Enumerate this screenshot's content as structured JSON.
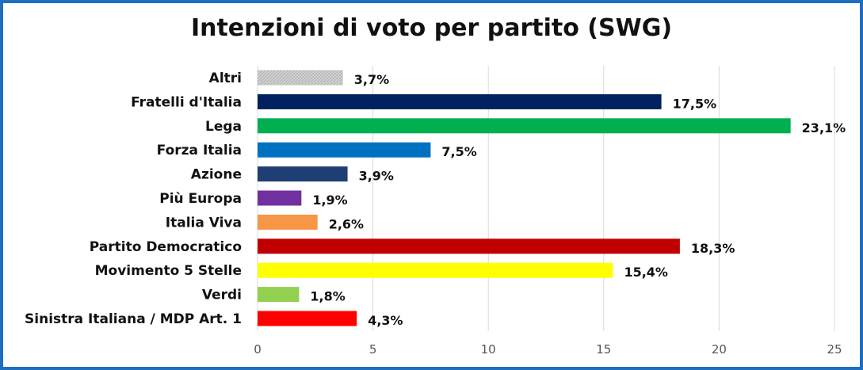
{
  "chart_data": {
    "type": "bar",
    "orientation": "horizontal",
    "title": "Intenzioni di voto per partito (SWG)",
    "xlabel": "",
    "ylabel": "",
    "xlim": [
      0,
      25
    ],
    "xticks": [
      "0",
      "5",
      "10",
      "15",
      "20",
      "25"
    ],
    "grid": true,
    "legend": "none",
    "categories": [
      "Altri",
      "Fratelli d'Italia",
      "Lega",
      "Forza Italia",
      "Azione",
      "Più Europa",
      "Italia Viva",
      "Partito Democratico",
      "Movimento 5 Stelle",
      "Verdi",
      "Sinistra Italiana / MDP Art. 1"
    ],
    "values": [
      3.7,
      17.5,
      23.1,
      7.5,
      3.9,
      1.9,
      2.6,
      18.3,
      15.4,
      1.8,
      4.3
    ],
    "value_labels": [
      "3,7%",
      "17,5%",
      "23,1%",
      "7,5%",
      "3,9%",
      "1,9%",
      "2,6%",
      "18,3%",
      "15,4%",
      "1,8%",
      "4,3%"
    ],
    "colors": [
      "#c8c8c8",
      "#002060",
      "#00b050",
      "#0070c0",
      "#1f3f74",
      "#7030a0",
      "#f79646",
      "#c00000",
      "#ffff00",
      "#92d050",
      "#ff0000"
    ]
  }
}
